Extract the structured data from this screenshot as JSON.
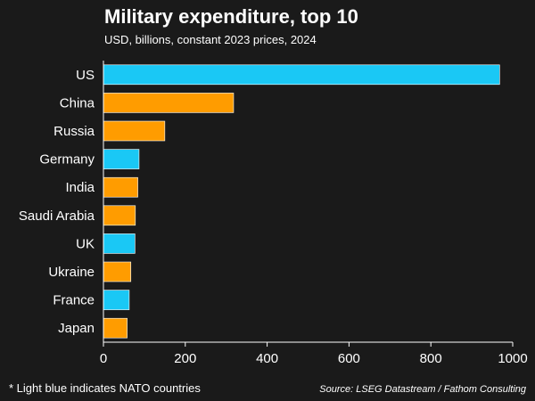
{
  "title": "Military expenditure, top 10",
  "subtitle": "USD, billions, constant 2023 prices, 2024",
  "footnote": "* Light blue indicates NATO countries",
  "source": "Source: LSEG Datastream / Fathom Consulting",
  "colors": {
    "background": "#1a1a1a",
    "nato": "#1ac8f5",
    "non_nato": "#ff9c00",
    "text": "#ffffff"
  },
  "chart_data": {
    "type": "bar",
    "orientation": "horizontal",
    "categories": [
      "US",
      "China",
      "Russia",
      "Germany",
      "India",
      "Saudi Arabia",
      "UK",
      "Ukraine",
      "France",
      "Japan"
    ],
    "values": [
      968,
      318,
      150,
      87,
      84,
      78,
      77,
      67,
      63,
      58
    ],
    "nato": [
      true,
      false,
      false,
      true,
      false,
      false,
      true,
      false,
      true,
      false
    ],
    "xlim": [
      0,
      1000
    ],
    "xticks": [
      0,
      200,
      400,
      600,
      800,
      1000
    ],
    "grid": false,
    "legend": "none"
  }
}
